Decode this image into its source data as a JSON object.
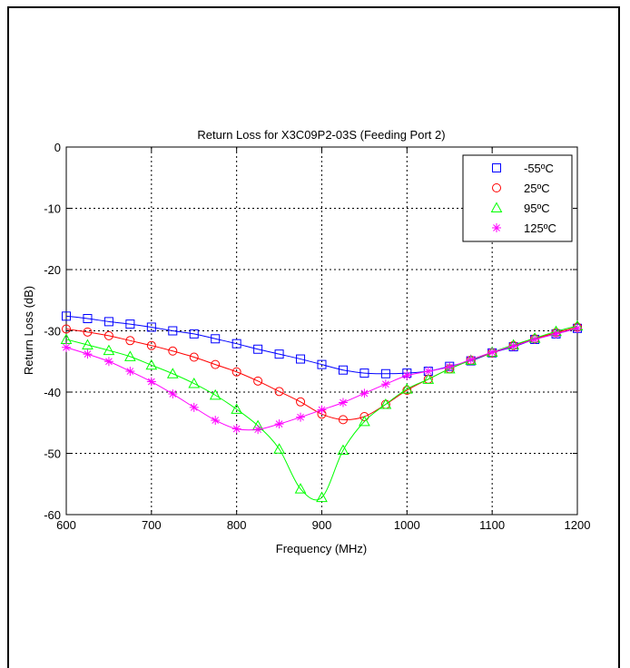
{
  "chart_data": {
    "type": "line",
    "title": "Return Loss for X3C09P2-03S (Feeding Port 2)",
    "xlabel": "Frequency (MHz)",
    "ylabel": "Return Loss (dB)",
    "xlim": [
      600,
      1200
    ],
    "ylim": [
      -60,
      0
    ],
    "xticks": [
      600,
      700,
      800,
      900,
      1000,
      1100,
      1200
    ],
    "yticks": [
      0,
      -10,
      -20,
      -30,
      -40,
      -50,
      -60
    ],
    "grid": true,
    "grid_style": "dotted",
    "legend_position": "top-right",
    "x": [
      600,
      625,
      650,
      675,
      700,
      725,
      750,
      775,
      800,
      825,
      850,
      875,
      900,
      925,
      950,
      975,
      1000,
      1025,
      1050,
      1075,
      1100,
      1125,
      1150,
      1175,
      1200
    ],
    "series": [
      {
        "name": "-55ºC",
        "color": "#0000ff",
        "marker": "square",
        "values": [
          -27.6,
          -28.0,
          -28.5,
          -28.9,
          -29.4,
          -30.0,
          -30.5,
          -31.3,
          -32.1,
          -33.0,
          -33.8,
          -34.6,
          -35.5,
          -36.4,
          -36.9,
          -37.0,
          -36.9,
          -36.6,
          -35.8,
          -34.9,
          -33.6,
          -32.6,
          -31.4,
          -30.5,
          -29.6
        ]
      },
      {
        "name": "25ºC",
        "color": "#ff0000",
        "marker": "circle",
        "values": [
          -29.7,
          -30.2,
          -30.8,
          -31.6,
          -32.4,
          -33.3,
          -34.3,
          -35.5,
          -36.7,
          -38.2,
          -39.9,
          -41.6,
          -43.6,
          -44.5,
          -44.0,
          -42.0,
          -39.7,
          -37.9,
          -36.2,
          -34.8,
          -33.6,
          -32.4,
          -31.3,
          -30.3,
          -29.4
        ]
      },
      {
        "name": "95ºC",
        "color": "#00ff00",
        "marker": "triangle",
        "values": [
          -31.4,
          -32.3,
          -33.2,
          -34.2,
          -35.6,
          -37.0,
          -38.6,
          -40.5,
          -42.8,
          -45.5,
          -49.3,
          -55.8,
          -57.2,
          -49.5,
          -44.8,
          -42.0,
          -39.5,
          -37.9,
          -36.2,
          -34.8,
          -33.5,
          -32.3,
          -31.2,
          -30.1,
          -29.2
        ]
      },
      {
        "name": "125ºC",
        "color": "#ff00ff",
        "marker": "star",
        "values": [
          -32.7,
          -33.8,
          -35.0,
          -36.6,
          -38.3,
          -40.3,
          -42.5,
          -44.6,
          -46.0,
          -46.1,
          -45.2,
          -44.1,
          -42.9,
          -41.7,
          -40.2,
          -38.7,
          -37.3,
          -36.6,
          -35.9,
          -34.7,
          -33.5,
          -32.5,
          -31.4,
          -30.5,
          -29.6
        ]
      }
    ]
  }
}
